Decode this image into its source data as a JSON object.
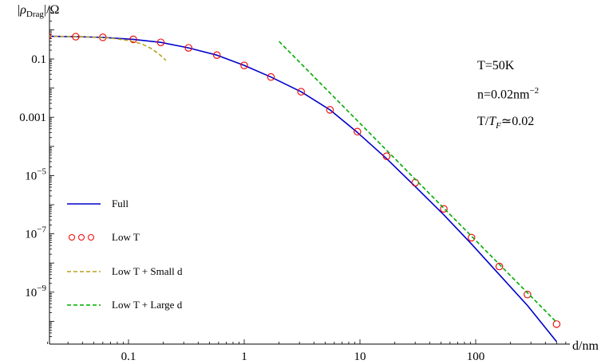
{
  "chart_data": {
    "type": "line",
    "xlabel": "d/nm",
    "ylabel": "|ρDrag|/Ω",
    "ylabel_parts": {
      "pre": "|",
      "rho": "ρ",
      "sub": "Drag",
      "post": "|/Ω"
    },
    "x_scale": "log",
    "y_scale": "log",
    "xlim": [
      0.02,
      600
    ],
    "ylim": [
      3e-11,
      2
    ],
    "x_tick_labels": [
      "0.1",
      "1",
      "10",
      "100"
    ],
    "y_tick_labels": [
      {
        "base": "0.1",
        "exp": ""
      },
      {
        "base": "0.001",
        "exp": ""
      },
      {
        "base": "10",
        "exp": "−5"
      },
      {
        "base": "10",
        "exp": "−7"
      },
      {
        "base": "10",
        "exp": "−9"
      }
    ],
    "annotations": {
      "temperature": "T=50K",
      "density_prefix": "n=0.02nm",
      "density_exp": "−2",
      "ratio_prefix": "T/",
      "ratio_italic": "T",
      "ratio_sub": "F",
      "ratio_suffix": "≃0.02"
    },
    "series": [
      {
        "name": "Full",
        "style": "solid",
        "color": "#0000cc",
        "x": [
          0.02,
          0.035,
          0.06,
          0.11,
          0.19,
          0.33,
          0.58,
          1.0,
          1.7,
          3.1,
          5.5,
          9.5,
          17,
          30,
          53,
          92,
          160,
          280,
          500
        ],
        "y": [
          0.6,
          0.58,
          0.55,
          0.47,
          0.37,
          0.24,
          0.135,
          0.06,
          0.024,
          0.0075,
          0.0018,
          0.0003,
          3.8e-05,
          4.2e-06,
          4.5e-07,
          4.5e-08,
          4e-09,
          3.5e-10,
          2e-11
        ]
      },
      {
        "name": "Low T",
        "style": "circles",
        "color": "#ee0000",
        "x": [
          0.02,
          0.035,
          0.06,
          0.11,
          0.19,
          0.33,
          0.58,
          1.0,
          1.7,
          3.1,
          5.5,
          9.5,
          17,
          30,
          53,
          92,
          160,
          280,
          500
        ],
        "y": [
          0.6,
          0.58,
          0.55,
          0.47,
          0.37,
          0.24,
          0.135,
          0.06,
          0.024,
          0.0075,
          0.0018,
          0.00032,
          4.6e-05,
          5.7e-06,
          7.2e-07,
          7.4e-08,
          7.6e-09,
          8.3e-10,
          8e-11
        ]
      },
      {
        "name": "Low T + Small d",
        "style": "dashed",
        "color": "#b8a020",
        "x": [
          0.02,
          0.04,
          0.07,
          0.1,
          0.13,
          0.16,
          0.19,
          0.21
        ],
        "y": [
          0.6,
          0.58,
          0.52,
          0.43,
          0.33,
          0.22,
          0.13,
          0.09
        ]
      },
      {
        "name": "Low T + Large d",
        "style": "dashed",
        "color": "#00aa00",
        "x": [
          2.0,
          500
        ],
        "y": [
          0.4,
          9.2e-11
        ]
      }
    ]
  }
}
